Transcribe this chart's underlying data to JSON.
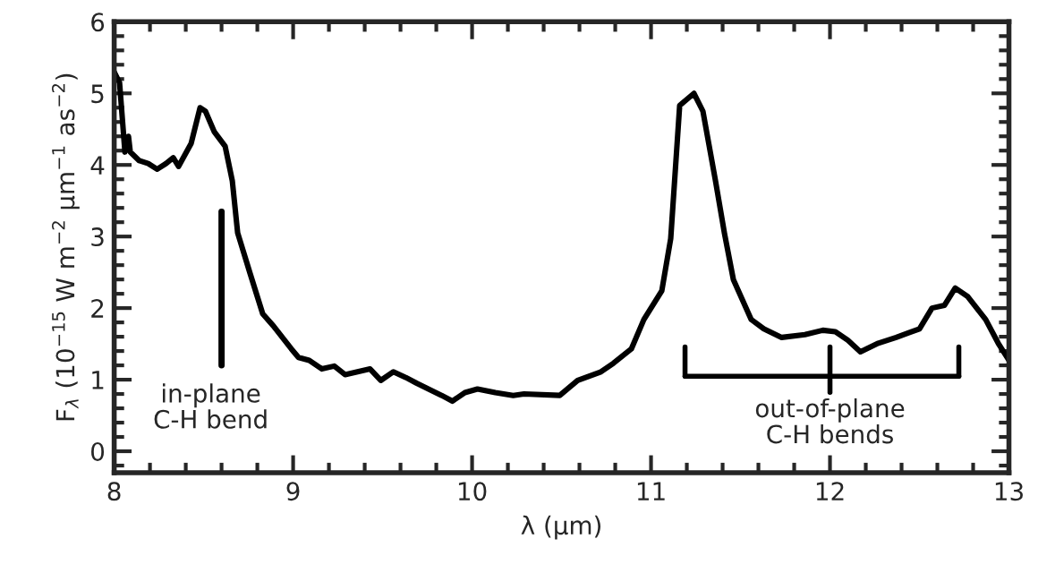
{
  "chart_data": {
    "type": "line",
    "xlabel": "λ (μm)",
    "ylabel": "F$_{λ}$ (10$^{−15}$ W m$^{−2}$ μm$^{−1}$ as$^{−2}$)",
    "series": [
      {
        "color": "#000000",
        "x": [
          8.0,
          8.03,
          8.06,
          8.08,
          8.09,
          8.14,
          8.19,
          8.24,
          8.29,
          8.33,
          8.36,
          8.43,
          8.48,
          8.51,
          8.56,
          8.62,
          8.66,
          8.69,
          8.76,
          8.83,
          8.89,
          8.99,
          9.03,
          9.09,
          9.16,
          9.23,
          9.29,
          9.43,
          9.49,
          9.56,
          9.63,
          9.69,
          9.83,
          9.89,
          9.96,
          10.03,
          10.13,
          10.23,
          10.29,
          10.49,
          10.59,
          10.72,
          10.79,
          10.89,
          10.96,
          11.06,
          11.11,
          11.16,
          11.24,
          11.29,
          11.36,
          11.41,
          11.46,
          11.56,
          11.63,
          11.73,
          11.86,
          11.96,
          12.03,
          12.1,
          12.17,
          12.27,
          12.37,
          12.5,
          12.57,
          12.64,
          12.7,
          12.77,
          12.87,
          12.94,
          13.0
        ],
        "values": [
          5.3,
          5.15,
          4.18,
          4.4,
          4.18,
          4.06,
          4.02,
          3.94,
          4.02,
          4.1,
          3.98,
          4.3,
          4.8,
          4.75,
          4.46,
          4.26,
          3.78,
          3.05,
          2.48,
          1.92,
          1.75,
          1.43,
          1.31,
          1.27,
          1.15,
          1.19,
          1.07,
          1.15,
          0.99,
          1.11,
          1.03,
          0.95,
          0.78,
          0.7,
          0.82,
          0.87,
          0.82,
          0.78,
          0.8,
          0.78,
          0.99,
          1.11,
          1.23,
          1.43,
          1.84,
          2.24,
          2.97,
          4.83,
          5.0,
          4.75,
          3.78,
          3.05,
          2.4,
          1.84,
          1.71,
          1.59,
          1.63,
          1.69,
          1.67,
          1.55,
          1.39,
          1.51,
          1.59,
          1.71,
          2.0,
          2.04,
          2.28,
          2.16,
          1.84,
          1.51,
          1.27
        ]
      }
    ],
    "xlim": [
      8,
      13
    ],
    "xticks": [
      8,
      9,
      10,
      11,
      12,
      13
    ],
    "ylim": [
      -0.3,
      6
    ],
    "yticks": [
      0,
      1,
      2,
      3,
      4,
      5,
      6
    ],
    "grid": false,
    "legend": false,
    "marker": "none",
    "line_style": "solid",
    "annotations": [
      "in-plane\nC-H bend",
      "out-of-plane\nC-H bends"
    ]
  }
}
